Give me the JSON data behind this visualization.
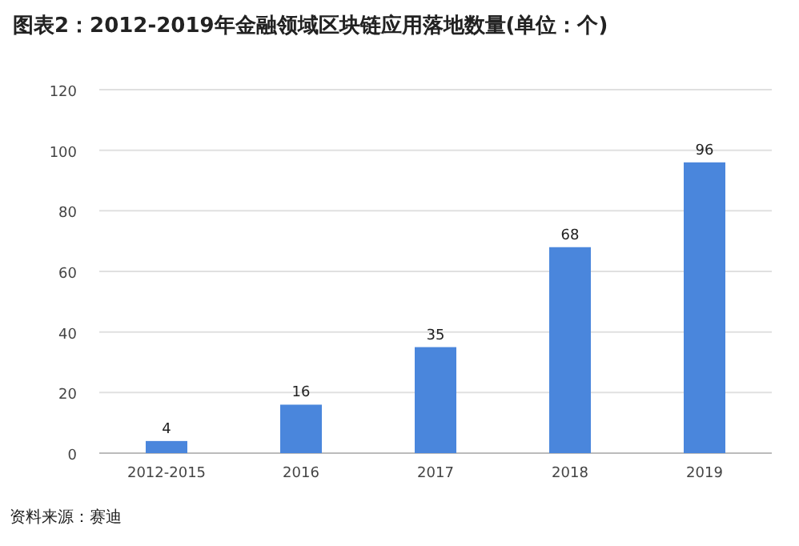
{
  "chart_data": {
    "type": "bar",
    "title": "图表2：2012-2019年金融领域区块链应用落地数量(单位：个)",
    "categories": [
      "2012-2015",
      "2016",
      "2017",
      "2018",
      "2019"
    ],
    "values": [
      4,
      16,
      35,
      68,
      96
    ],
    "color": "#4a86dc",
    "ylim": [
      0,
      120
    ],
    "yticks": [
      0,
      20,
      40,
      60,
      80,
      100,
      120
    ],
    "grid": "y",
    "data_labels": true,
    "annotations": [
      "资料来源：赛迪"
    ]
  }
}
